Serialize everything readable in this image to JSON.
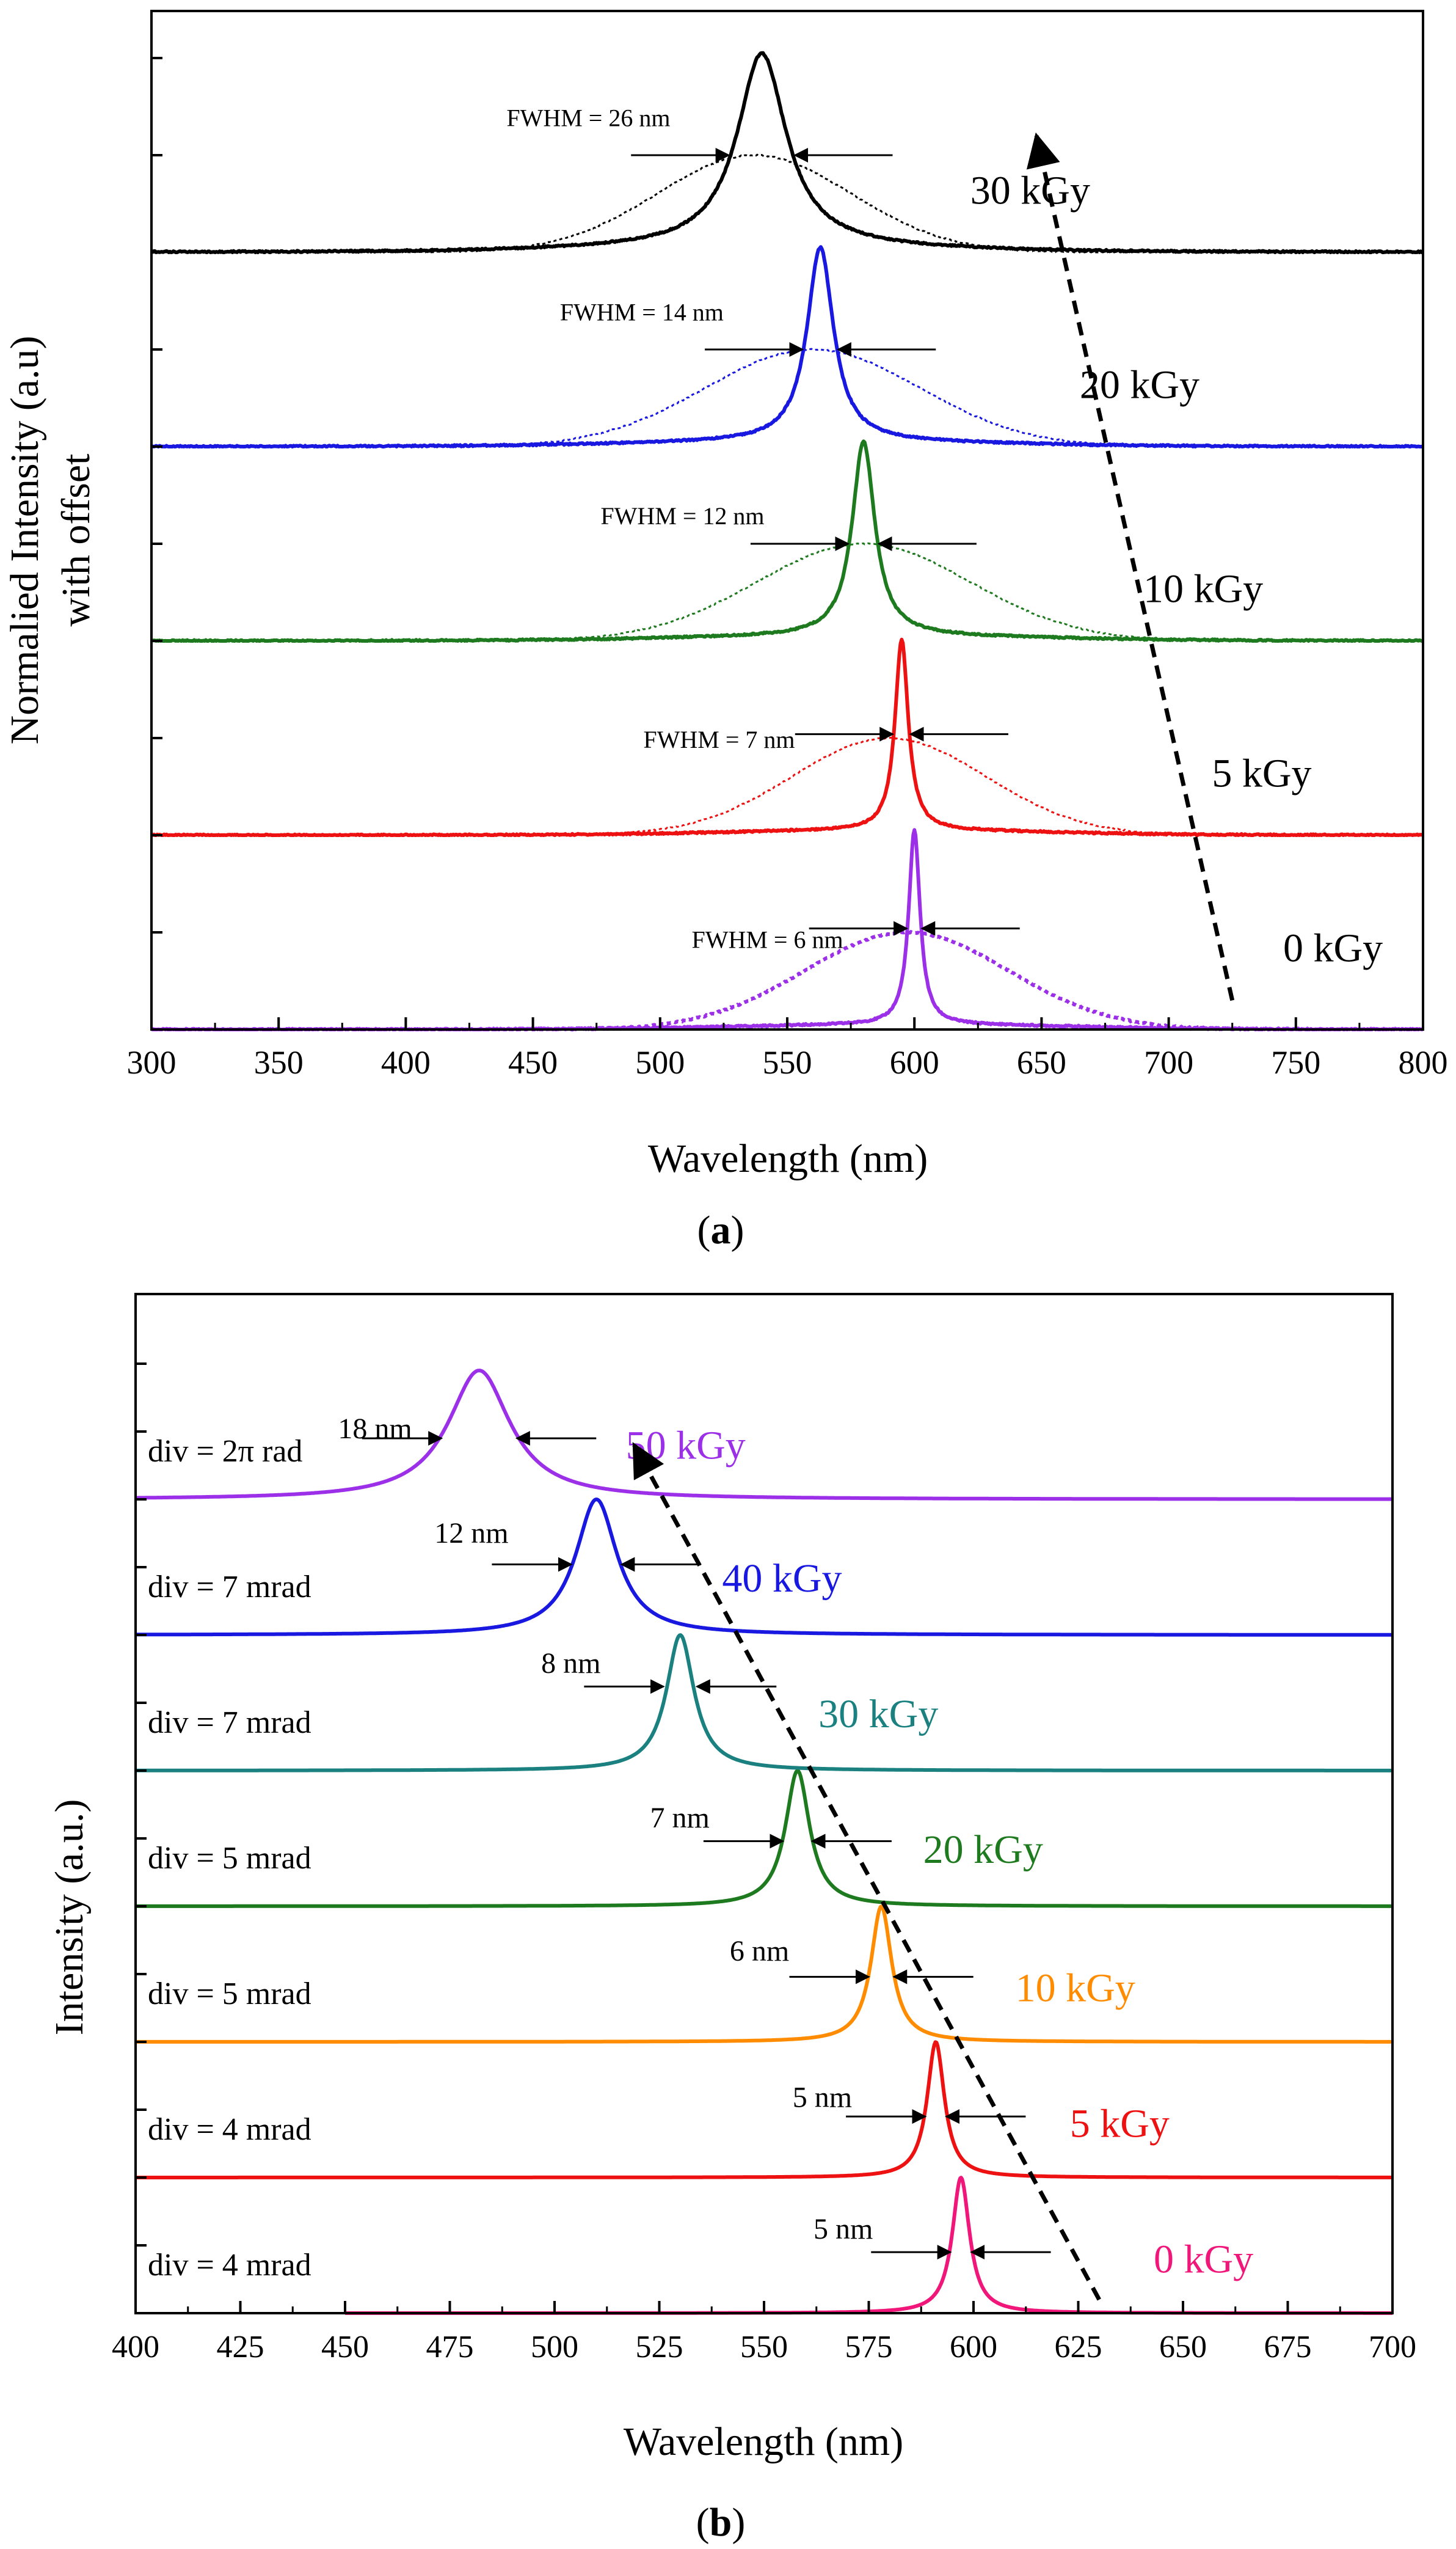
{
  "colors": {
    "axis": "#000000",
    "purple": "#9B30E8",
    "red": "#EE1111",
    "green": "#1E7A1E",
    "blue": "#1818E0",
    "black": "#000000",
    "teal": "#1A8080",
    "orange": "#FF8C00",
    "pink": "#F0167A"
  },
  "chart_data": [
    {
      "type": "line",
      "panel_label": "a",
      "xlabel": "Wavelength (nm)",
      "ylabel": [
        "Normalied Intensity (a.u)",
        "with offset"
      ],
      "xlim": [
        300,
        800
      ],
      "xticks": [
        300,
        350,
        400,
        450,
        500,
        550,
        600,
        650,
        700,
        750,
        800
      ],
      "arrow": {
        "from": [
          725,
          0.15
        ],
        "to": [
          648,
          4.6
        ]
      },
      "series": [
        {
          "name": "0 kGy",
          "label": "0 kGy",
          "color": "purple",
          "offset": 0,
          "amp": 1.0,
          "peak": 600,
          "fwhm_nm": 6,
          "broad_center": 597,
          "broad_sigma": 40,
          "broad_amp": 0.5,
          "fwhm_label": "FWHM = 6 nm",
          "label_pos": [
            745,
            0.35
          ],
          "fwhm_pos": [
            572,
            0.42
          ],
          "arrows_y": 0.52
        },
        {
          "name": "5 kGy",
          "label": "5 kGy",
          "color": "red",
          "offset": 1,
          "amp": 0.98,
          "peak": 595,
          "fwhm_nm": 7,
          "broad_center": 590,
          "broad_sigma": 38,
          "broad_amp": 0.5,
          "fwhm_label": "FWHM = 7 nm",
          "label_pos": [
            717,
            0.25
          ],
          "fwhm_pos": [
            553,
            0.45
          ],
          "arrows_y": 0.52
        },
        {
          "name": "10 kGy",
          "label": "10 kGy",
          "color": "green",
          "offset": 2,
          "amp": 1.0,
          "peak": 580,
          "fwhm_nm": 12,
          "broad_center": 580,
          "broad_sigma": 42,
          "broad_amp": 0.5,
          "fwhm_label": "FWHM = 12 nm",
          "label_pos": [
            690,
            0.2
          ],
          "fwhm_pos": [
            541,
            0.6
          ],
          "arrows_y": 0.5
        },
        {
          "name": "20 kGy",
          "label": "20 kGy",
          "color": "blue",
          "offset": 3,
          "amp": 1.0,
          "peak": 563,
          "fwhm_nm": 14,
          "broad_center": 560,
          "broad_sigma": 42,
          "broad_amp": 0.5,
          "fwhm_label": "FWHM = 14 nm",
          "label_pos": [
            665,
            0.25
          ],
          "fwhm_pos": [
            525,
            0.65
          ],
          "arrows_y": 0.5
        },
        {
          "name": "30 kGy",
          "label": "30 kGy",
          "color": "black",
          "offset": 4,
          "amp": 1.0,
          "peak": 540,
          "fwhm_nm": 26,
          "broad_center": 537,
          "broad_sigma": 38,
          "broad_amp": 0.5,
          "fwhm_label": "FWHM = 26 nm",
          "label_pos": [
            622,
            0.25
          ],
          "fwhm_pos": [
            504,
            0.65
          ],
          "arrows_y": 0.5
        }
      ]
    },
    {
      "type": "line",
      "panel_label": "b",
      "xlabel": "Wavelength (nm)",
      "ylabel": [
        "Intensity (a.u.)"
      ],
      "xlim": [
        400,
        700
      ],
      "xticks": [
        400,
        425,
        450,
        475,
        500,
        525,
        550,
        575,
        600,
        625,
        650,
        675,
        700
      ],
      "arrow": {
        "from": [
          630,
          0.1
        ],
        "to": [
          519,
          6.4
        ]
      },
      "series": [
        {
          "name": "0 kGy",
          "label": "0 kGy",
          "color": "pink",
          "offset": 0,
          "amp": 1.0,
          "peak": 597,
          "width_nm": 5,
          "width_label": "5 nm",
          "div_label": "div = 4 mrad",
          "x_start": 450,
          "label_pos": [
            643,
            0.3
          ],
          "width_pos": [
            576,
            0.55
          ],
          "arrows_y": 0.45
        },
        {
          "name": "5 kGy",
          "label": "5 kGy",
          "color": "red",
          "offset": 1,
          "amp": 1.0,
          "peak": 591,
          "width_nm": 5,
          "width_label": "5 nm",
          "div_label": "div = 4 mrad",
          "x_start": 400,
          "label_pos": [
            623,
            0.3
          ],
          "width_pos": [
            571,
            0.52
          ],
          "arrows_y": 0.45
        },
        {
          "name": "10 kGy",
          "label": "10 kGy",
          "color": "orange",
          "offset": 2,
          "amp": 1.0,
          "peak": 578,
          "width_nm": 6,
          "width_label": "6 nm",
          "div_label": "div = 5 mrad",
          "x_start": 400,
          "label_pos": [
            610,
            0.3
          ],
          "width_pos": [
            556,
            0.6
          ],
          "arrows_y": 0.48
        },
        {
          "name": "20 kGy",
          "label": "20 kGy",
          "color": "green",
          "offset": 3,
          "amp": 1.0,
          "peak": 558,
          "width_nm": 7,
          "width_label": "7 nm",
          "div_label": "div = 5 mrad",
          "x_start": 400,
          "label_pos": [
            588,
            0.32
          ],
          "width_pos": [
            537,
            0.58
          ],
          "arrows_y": 0.48
        },
        {
          "name": "30 kGy",
          "label": "30 kGy",
          "color": "teal",
          "offset": 4,
          "amp": 1.0,
          "peak": 530,
          "width_nm": 8,
          "width_label": "8 nm",
          "div_label": "div = 7 mrad",
          "x_start": 400,
          "label_pos": [
            563,
            0.32
          ],
          "width_pos": [
            511,
            0.72
          ],
          "arrows_y": 0.62
        },
        {
          "name": "40 kGy",
          "label": "40 kGy",
          "color": "blue",
          "offset": 5,
          "amp": 1.0,
          "peak": 510,
          "width_nm": 12,
          "width_label": "12 nm",
          "div_label": "div = 7 mrad",
          "x_start": 400,
          "label_pos": [
            540,
            0.32
          ],
          "width_pos": [
            489,
            0.68
          ],
          "arrows_y": 0.52
        },
        {
          "name": "50 kGy",
          "label": "50 kGy",
          "color": "purple",
          "offset": 6,
          "amp": 0.95,
          "peak": 482,
          "width_nm": 18,
          "width_label": "18 nm",
          "div_label": "div = 2π rad",
          "x_start": 400,
          "label_pos": [
            517,
            0.3
          ],
          "width_pos": [
            466,
            0.45
          ],
          "arrows_y": 0.45
        }
      ]
    }
  ]
}
